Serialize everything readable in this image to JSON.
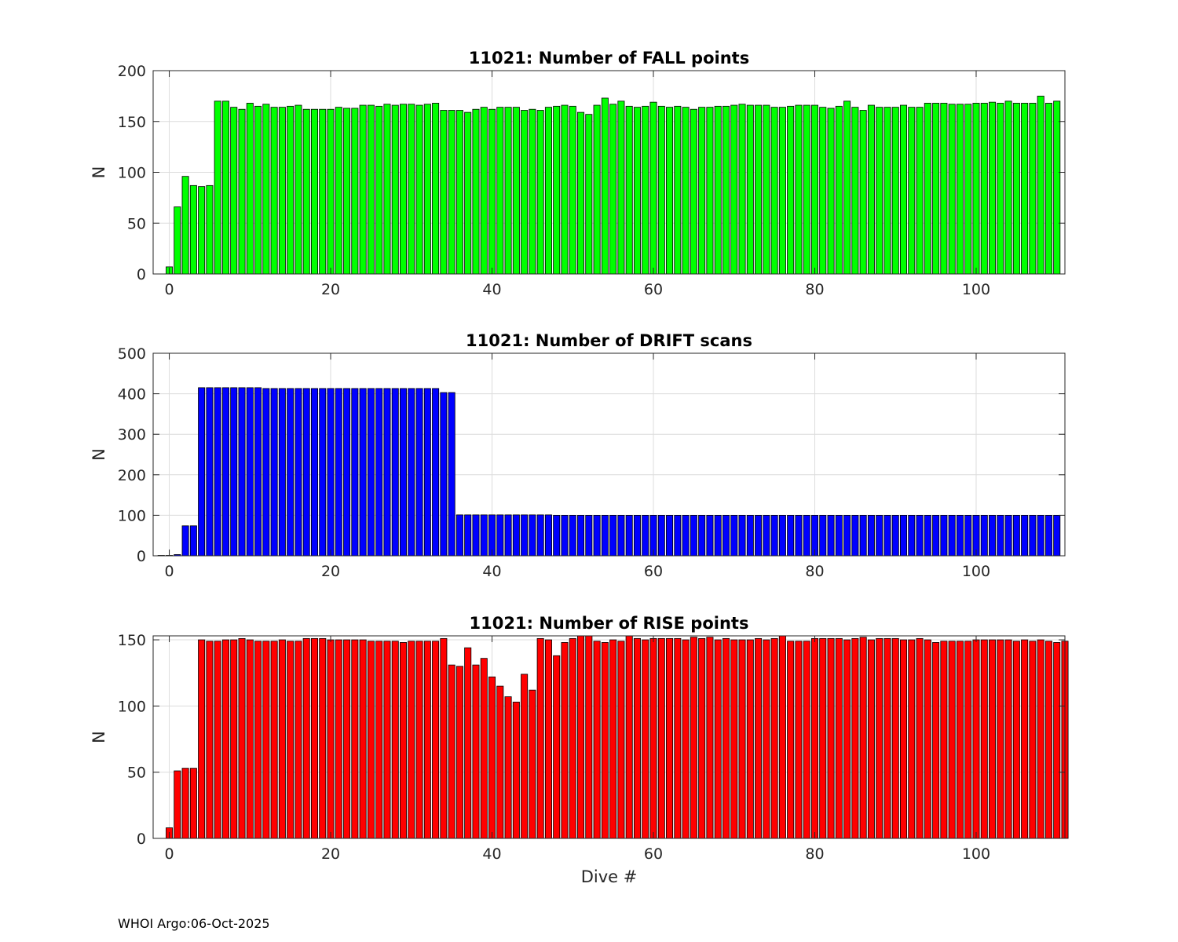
{
  "footer": "WHOI Argo:06-Oct-2025",
  "chart_data": [
    {
      "type": "bar",
      "title": "11021: Number of FALL points",
      "xlabel": "",
      "ylabel": "N",
      "color": "#00ff00",
      "xlim": [
        -2,
        111
      ],
      "ylim": [
        0,
        200
      ],
      "xticks": [
        0,
        20,
        40,
        60,
        80,
        100
      ],
      "yticks": [
        0,
        50,
        100,
        150,
        200
      ],
      "grid": true,
      "x_start": 0,
      "values": [
        7,
        66,
        96,
        87,
        86,
        87,
        170,
        170,
        164,
        162,
        168,
        165,
        167,
        164,
        164,
        165,
        166,
        162,
        162,
        162,
        162,
        164,
        163,
        163,
        166,
        166,
        165,
        167,
        166,
        167,
        167,
        166,
        167,
        168,
        161,
        161,
        161,
        159,
        162,
        164,
        162,
        164,
        164,
        164,
        161,
        162,
        161,
        164,
        165,
        166,
        165,
        159,
        157,
        166,
        173,
        167,
        170,
        165,
        164,
        165,
        169,
        165,
        164,
        165,
        164,
        162,
        164,
        164,
        165,
        165,
        166,
        167,
        166,
        166,
        166,
        164,
        164,
        165,
        166,
        166,
        166,
        164,
        163,
        165,
        170,
        164,
        161,
        166,
        164,
        164,
        164,
        166,
        164,
        164,
        168,
        168,
        168,
        167,
        167,
        167,
        168,
        168,
        169,
        168,
        170,
        168,
        168,
        168,
        175,
        168,
        170
      ]
    },
    {
      "type": "bar",
      "title": "11021: Number of DRIFT scans",
      "xlabel": "",
      "ylabel": "N",
      "color": "#0000ff",
      "xlim": [
        -2,
        111
      ],
      "ylim": [
        0,
        500
      ],
      "xticks": [
        0,
        20,
        40,
        60,
        80,
        100
      ],
      "yticks": [
        0,
        100,
        200,
        300,
        400,
        500
      ],
      "grid": true,
      "x_start": -1,
      "values": [
        1,
        1,
        3,
        74,
        74,
        415,
        415,
        415,
        415,
        415,
        415,
        415,
        415,
        413,
        413,
        413,
        413,
        413,
        413,
        413,
        413,
        413,
        413,
        413,
        413,
        413,
        413,
        413,
        413,
        413,
        413,
        413,
        413,
        413,
        413,
        403,
        403,
        101,
        101,
        101,
        101,
        101,
        101,
        101,
        101,
        101,
        101,
        101,
        101,
        100,
        100,
        100,
        100,
        100,
        100,
        100,
        100,
        100,
        100,
        100,
        100,
        100,
        100,
        100,
        100,
        100,
        100,
        100,
        100,
        100,
        100,
        100,
        100,
        100,
        100,
        100,
        100,
        100,
        100,
        100,
        100,
        100,
        100,
        100,
        100,
        100,
        100,
        100,
        100,
        100,
        100,
        100,
        100,
        100,
        100,
        100,
        100,
        100,
        100,
        100,
        100,
        100,
        100,
        100,
        100,
        100,
        100,
        100,
        100,
        100,
        100,
        100
      ]
    },
    {
      "type": "bar",
      "title": "11021: Number of RISE points",
      "xlabel": "Dive #",
      "ylabel": "N",
      "color": "#ff0000",
      "xlim": [
        -2,
        111
      ],
      "ylim": [
        0,
        153
      ],
      "xticks": [
        0,
        20,
        40,
        60,
        80,
        100
      ],
      "yticks": [
        0,
        50,
        100,
        150
      ],
      "grid": true,
      "x_start": 0,
      "values": [
        8,
        51,
        53,
        53,
        150,
        149,
        149,
        150,
        150,
        151,
        150,
        149,
        149,
        149,
        150,
        149,
        149,
        151,
        151,
        151,
        150,
        150,
        150,
        150,
        150,
        149,
        149,
        149,
        149,
        148,
        149,
        149,
        149,
        149,
        151,
        131,
        130,
        144,
        131,
        136,
        122,
        115,
        107,
        103,
        124,
        112,
        151,
        150,
        138,
        148,
        151,
        153,
        153,
        149,
        148,
        150,
        149,
        153,
        151,
        150,
        151,
        151,
        151,
        151,
        150,
        152,
        151,
        152,
        150,
        151,
        150,
        150,
        150,
        151,
        150,
        151,
        153,
        149,
        149,
        149,
        151,
        151,
        151,
        151,
        150,
        151,
        152,
        150,
        151,
        151,
        151,
        150,
        150,
        151,
        150,
        148,
        149,
        149,
        149,
        149,
        150,
        150,
        150,
        150,
        150,
        149,
        150,
        149,
        150,
        149,
        148,
        149
      ]
    }
  ]
}
